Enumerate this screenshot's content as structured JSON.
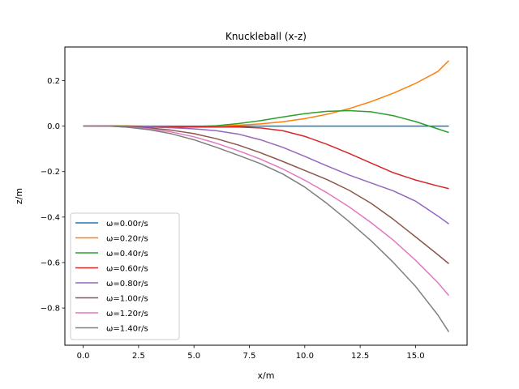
{
  "chart_data": {
    "type": "line",
    "title": "Knuckleball (x-z)",
    "xlabel": "x/m",
    "ylabel": "z/m",
    "xlim": [
      -0.825,
      17.325
    ],
    "ylim": [
      -0.9637,
      0.348
    ],
    "xticks": [
      0,
      2.5,
      5,
      7.5,
      10,
      12.5,
      15
    ],
    "xtick_labels": [
      "0.0",
      "2.5",
      "5.0",
      "7.5",
      "10.0",
      "12.5",
      "15.0"
    ],
    "yticks": [
      0.2,
      0,
      -0.2,
      -0.4,
      -0.6,
      -0.8
    ],
    "ytick_labels": [
      "0.2",
      "0.0",
      "−0.2",
      "−0.4",
      "−0.6",
      "−0.8"
    ],
    "grid": false,
    "legend_position": "lower-left",
    "series": [
      {
        "name": "ω=0.00r/s",
        "color": "#1f77b4",
        "x": [
          0,
          16.5
        ],
        "y": [
          0,
          0
        ]
      },
      {
        "name": "ω=0.20r/s",
        "color": "#ff7f0e",
        "x": [
          0,
          1,
          2,
          3,
          4,
          5,
          6,
          7,
          8,
          9,
          10,
          11,
          12,
          13,
          14,
          15,
          16,
          16.5
        ],
        "y": [
          0,
          0.0015,
          0.001,
          -0.001,
          -0.002,
          -0.002,
          0,
          0.004,
          0.01,
          0.019,
          0.033,
          0.052,
          0.077,
          0.108,
          0.145,
          0.188,
          0.24,
          0.288
        ]
      },
      {
        "name": "ω=0.40r/s",
        "color": "#2ca02c",
        "x": [
          0,
          1,
          2,
          3,
          4,
          5,
          6,
          7,
          8,
          9,
          10,
          11,
          12,
          13,
          14,
          15,
          16,
          16.5
        ],
        "y": [
          0,
          0.0015,
          0,
          -0.002,
          -0.003,
          -0.002,
          0.002,
          0.011,
          0.024,
          0.04,
          0.055,
          0.065,
          0.068,
          0.063,
          0.046,
          0.02,
          -0.012,
          -0.028
        ]
      },
      {
        "name": "ω=0.60r/s",
        "color": "#d62728",
        "x": [
          0,
          1,
          2,
          3,
          4,
          5,
          6,
          7,
          8,
          9,
          10,
          11,
          12,
          13,
          14,
          15,
          16,
          16.5
        ],
        "y": [
          0,
          0.001,
          -0.001,
          -0.003,
          -0.004,
          -0.004,
          -0.004,
          -0.004,
          -0.008,
          -0.02,
          -0.045,
          -0.08,
          -0.12,
          -0.163,
          -0.205,
          -0.237,
          -0.263,
          -0.275
        ]
      },
      {
        "name": "ω=0.80r/s",
        "color": "#9467bd",
        "x": [
          0,
          1,
          2,
          3,
          4,
          5,
          6,
          7,
          8,
          9,
          10,
          11,
          12,
          13,
          14,
          15,
          16,
          16.5
        ],
        "y": [
          0,
          0.001,
          -0.002,
          -0.004,
          -0.007,
          -0.012,
          -0.02,
          -0.035,
          -0.06,
          -0.093,
          -0.133,
          -0.175,
          -0.215,
          -0.25,
          -0.285,
          -0.33,
          -0.395,
          -0.43
        ]
      },
      {
        "name": "ω=1.00r/s",
        "color": "#8c564b",
        "x": [
          0,
          1,
          2,
          3,
          4,
          5,
          6,
          7,
          8,
          9,
          10,
          11,
          12,
          13,
          14,
          15,
          16,
          16.5
        ],
        "y": [
          0,
          0.001,
          -0.003,
          -0.008,
          -0.018,
          -0.033,
          -0.055,
          -0.083,
          -0.117,
          -0.155,
          -0.195,
          -0.235,
          -0.282,
          -0.34,
          -0.41,
          -0.487,
          -0.565,
          -0.605
        ]
      },
      {
        "name": "ω=1.20r/s",
        "color": "#e377c2",
        "x": [
          0,
          1,
          2,
          3,
          4,
          5,
          6,
          7,
          8,
          9,
          10,
          11,
          12,
          13,
          14,
          15,
          16,
          16.5
        ],
        "y": [
          0,
          0.001,
          -0.004,
          -0.012,
          -0.026,
          -0.047,
          -0.075,
          -0.108,
          -0.145,
          -0.188,
          -0.238,
          -0.293,
          -0.355,
          -0.425,
          -0.502,
          -0.59,
          -0.688,
          -0.745
        ]
      },
      {
        "name": "ω=1.40r/s",
        "color": "#7f7f7f",
        "x": [
          0,
          1,
          2,
          3,
          4,
          5,
          6,
          7,
          8,
          9,
          10,
          11,
          12,
          13,
          14,
          15,
          16,
          16.5
        ],
        "y": [
          0,
          0.001,
          -0.005,
          -0.016,
          -0.034,
          -0.06,
          -0.093,
          -0.128,
          -0.165,
          -0.21,
          -0.268,
          -0.34,
          -0.42,
          -0.505,
          -0.6,
          -0.705,
          -0.83,
          -0.905
        ]
      }
    ]
  }
}
